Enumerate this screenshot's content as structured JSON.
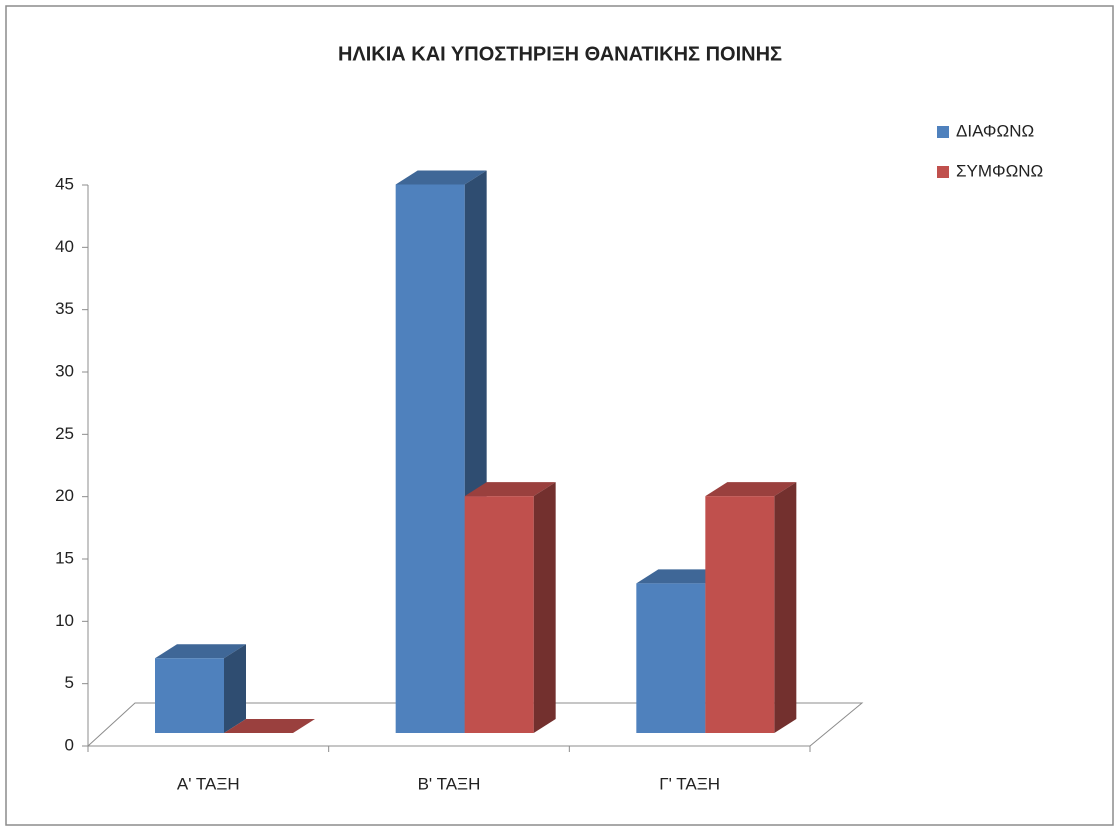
{
  "chart_data": {
    "type": "bar3d",
    "title": "ΗΛΙΚΙΑ ΚΑΙ ΥΠΟΣΤΗΡΙΞΗ ΘΑΝΑΤΙΚΗΣ ΠΟΙΝΗΣ",
    "categories": [
      "Α' ΤΑΞΗ",
      "Β' ΤΑΞΗ",
      "Γ' ΤΑΞΗ"
    ],
    "series": [
      {
        "name": "ΔΙΑΦΩΝΩ",
        "color": "#4f81bd",
        "values": [
          6,
          44,
          12
        ]
      },
      {
        "name": "ΣΥΜΦΩΝΩ",
        "color": "#c0504d",
        "values": [
          0,
          19,
          19
        ]
      }
    ],
    "ylim": [
      0,
      45
    ],
    "yticks": [
      0,
      5,
      10,
      15,
      20,
      25,
      30,
      35,
      40,
      45
    ],
    "legend": "right"
  }
}
